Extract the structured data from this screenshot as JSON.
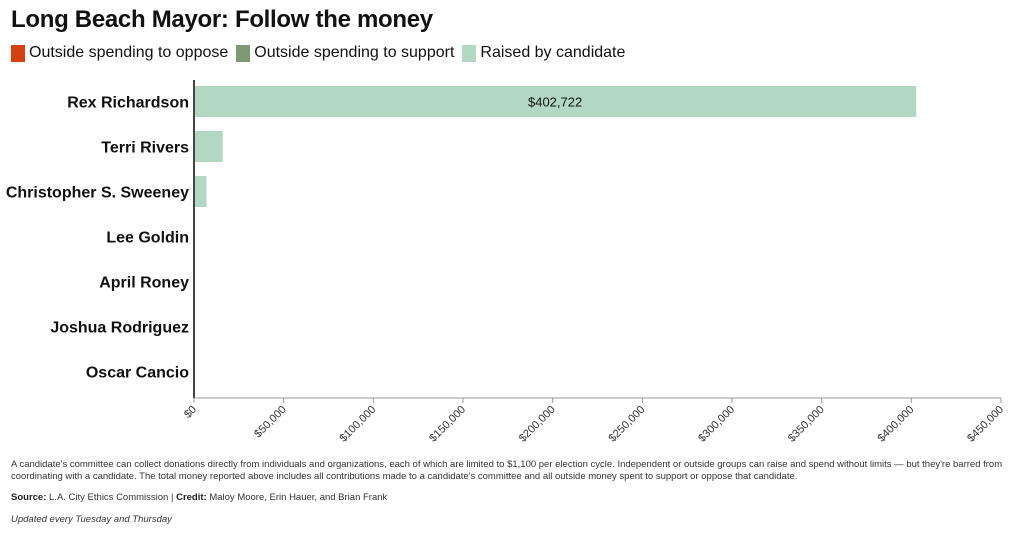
{
  "title": "Long Beach Mayor: Follow the money",
  "legend": [
    {
      "label": "Outside spending to oppose",
      "color": "#d64113"
    },
    {
      "label": "Outside spending to support",
      "color": "#7d9a74"
    },
    {
      "label": "Raised by candidate",
      "color": "#b2d8c4"
    }
  ],
  "chart_data": {
    "type": "bar",
    "orientation": "horizontal",
    "stacked": true,
    "categories": [
      "Rex Richardson",
      "Terri Rivers",
      "Christopher S. Sweeney",
      "Lee Goldin",
      "April Roney",
      "Joshua Rodriguez",
      "Oscar Cancio"
    ],
    "series": [
      {
        "name": "Outside spending to oppose",
        "color": "#d64113",
        "values": [
          0,
          0,
          0,
          0,
          0,
          0,
          0
        ]
      },
      {
        "name": "Outside spending to support",
        "color": "#7d9a74",
        "values": [
          0,
          0,
          0,
          0,
          0,
          0,
          0
        ]
      },
      {
        "name": "Raised by candidate",
        "color": "#b2d8c4",
        "values": [
          402722,
          16000,
          7000,
          0,
          0,
          0,
          0
        ]
      }
    ],
    "data_labels": [
      {
        "category": "Rex Richardson",
        "text": "$402,722"
      }
    ],
    "xlim": [
      0,
      450000
    ],
    "xticks": [
      0,
      50000,
      100000,
      150000,
      200000,
      250000,
      300000,
      350000,
      400000,
      450000
    ],
    "xtick_labels": [
      "$0",
      "$50,000",
      "$100,000",
      "$150,000",
      "$200,000",
      "$250,000",
      "$300,000",
      "$350,000",
      "$400,000",
      "$450,000"
    ],
    "grid": false,
    "legend_position": "top-left"
  },
  "footnote": "A candidate's committee can collect donations directly from individuals and organizations, each of which are limited to $1,100 per election cycle. Independent or outside groups can raise and spend without limits — but they're barred from coordinating with a candidate. The total money reported above includes all contributions made to a candidate's committee and all outside money spent to support or oppose that candidate.",
  "source": {
    "source_label": "Source:",
    "source_text": "L.A. City Ethics Commission",
    "separator": "|",
    "credit_label": "Credit:",
    "credit_text": "Maloy Moore, Erin Hauer, and Brian Frank"
  },
  "updated": "Updated every Tuesday and Thursday"
}
